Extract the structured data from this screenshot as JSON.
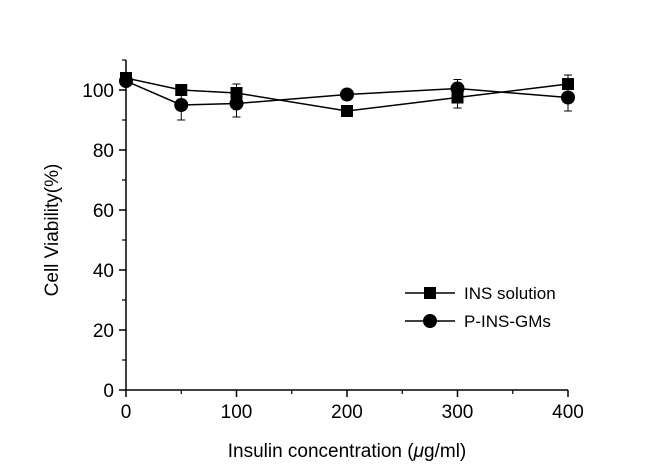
{
  "chart_data": {
    "type": "line",
    "title": "",
    "xlabel_prefix": "Insulin concentration (",
    "xlabel_mu": "μ",
    "xlabel_suffix": "g/ml)",
    "ylabel": "Cell Viability(%)",
    "xlim": [
      0,
      400
    ],
    "ylim": [
      0,
      110
    ],
    "xticks": [
      0,
      100,
      200,
      300,
      400
    ],
    "yticks": [
      0,
      20,
      40,
      60,
      80,
      100
    ],
    "grid": false,
    "legend_position": "lower-right",
    "series": [
      {
        "name": "INS solution",
        "marker": "square",
        "x": [
          0,
          50,
          100,
          200,
          300,
          400
        ],
        "y": [
          104,
          100,
          99,
          93,
          97.5,
          102
        ],
        "err": [
          1.5,
          1.5,
          3,
          1.5,
          3.5,
          3
        ]
      },
      {
        "name": "P-INS-GMs",
        "marker": "circle",
        "x": [
          0,
          50,
          100,
          200,
          300,
          400
        ],
        "y": [
          103,
          95,
          95.5,
          98.5,
          100.5,
          97.5
        ],
        "err": [
          1.5,
          5,
          4.5,
          1.5,
          3,
          4.5
        ]
      }
    ]
  }
}
